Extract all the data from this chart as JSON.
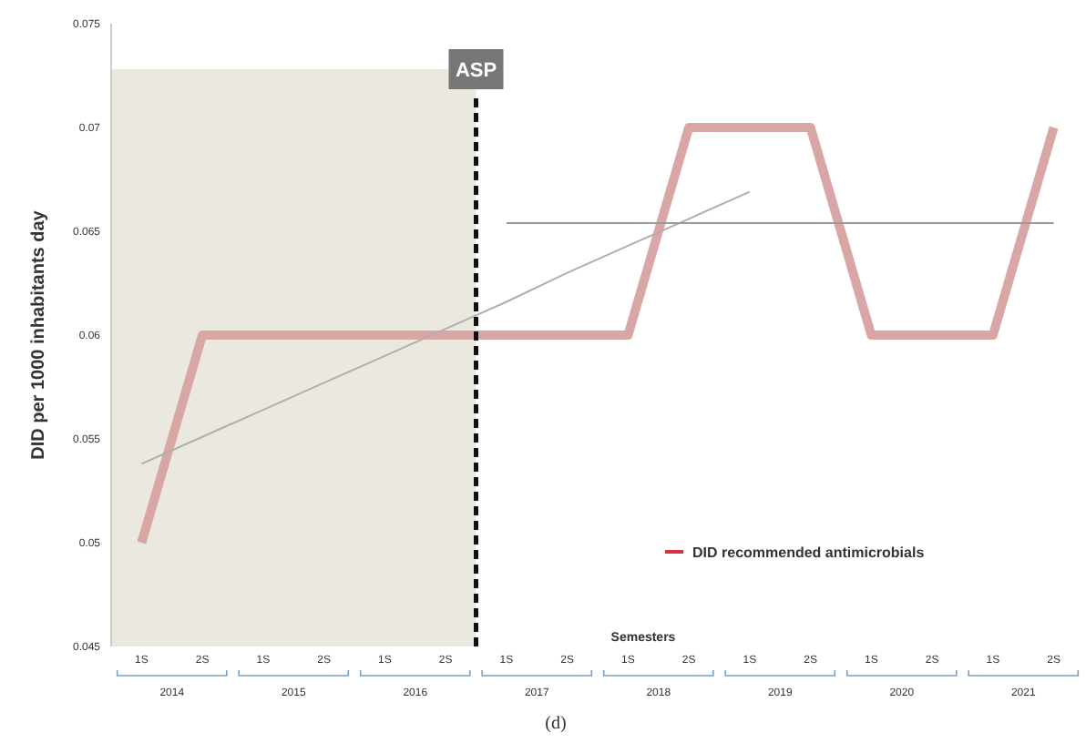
{
  "chart_data": {
    "type": "line",
    "xlabel": "Semesters",
    "ylabel": "DID per 1000 inhabitants day",
    "categories": [
      "1S",
      "2S",
      "1S",
      "2S",
      "1S",
      "2S",
      "1S",
      "2S",
      "1S",
      "2S",
      "1S",
      "2S",
      "1S",
      "2S",
      "1S",
      "2S"
    ],
    "series": [
      {
        "name": "DID recommended antimicrobials",
        "color": "#d9a6a6",
        "values": [
          0.05,
          0.06,
          0.06,
          0.06,
          0.06,
          0.06,
          0.06,
          0.06,
          0.06,
          0.07,
          0.07,
          0.07,
          0.06,
          0.06,
          0.06,
          0.07
        ]
      },
      {
        "type": "line",
        "color": "#b0b0a8",
        "values": [
          0.0538,
          0.0551,
          0.0564,
          0.0577,
          0.059,
          0.0603,
          0.0616,
          0.063,
          0.0643,
          0.0656,
          0.0669,
          null,
          null,
          null,
          null,
          null
        ]
      },
      {
        "type": "line",
        "color": "#9a9a9a",
        "values": [
          null,
          null,
          null,
          null,
          null,
          null,
          0.0654,
          0.0654,
          0.0654,
          0.0654,
          0.0654,
          0.0654,
          0.0654,
          0.0654,
          0.0654,
          0.0654
        ]
      }
    ],
    "ylim": [
      0.045,
      0.075
    ],
    "yticks": [
      0.045,
      0.05,
      0.055,
      0.06,
      0.065,
      0.07,
      0.075
    ],
    "annotations": [
      "2014",
      "2015",
      "2016",
      "2017",
      "2018",
      "2019",
      "2020",
      "2021",
      "ASP",
      "(d)"
    ],
    "legend": "bottom right",
    "grid": false,
    "marker": "none",
    "line_style": "solid"
  }
}
